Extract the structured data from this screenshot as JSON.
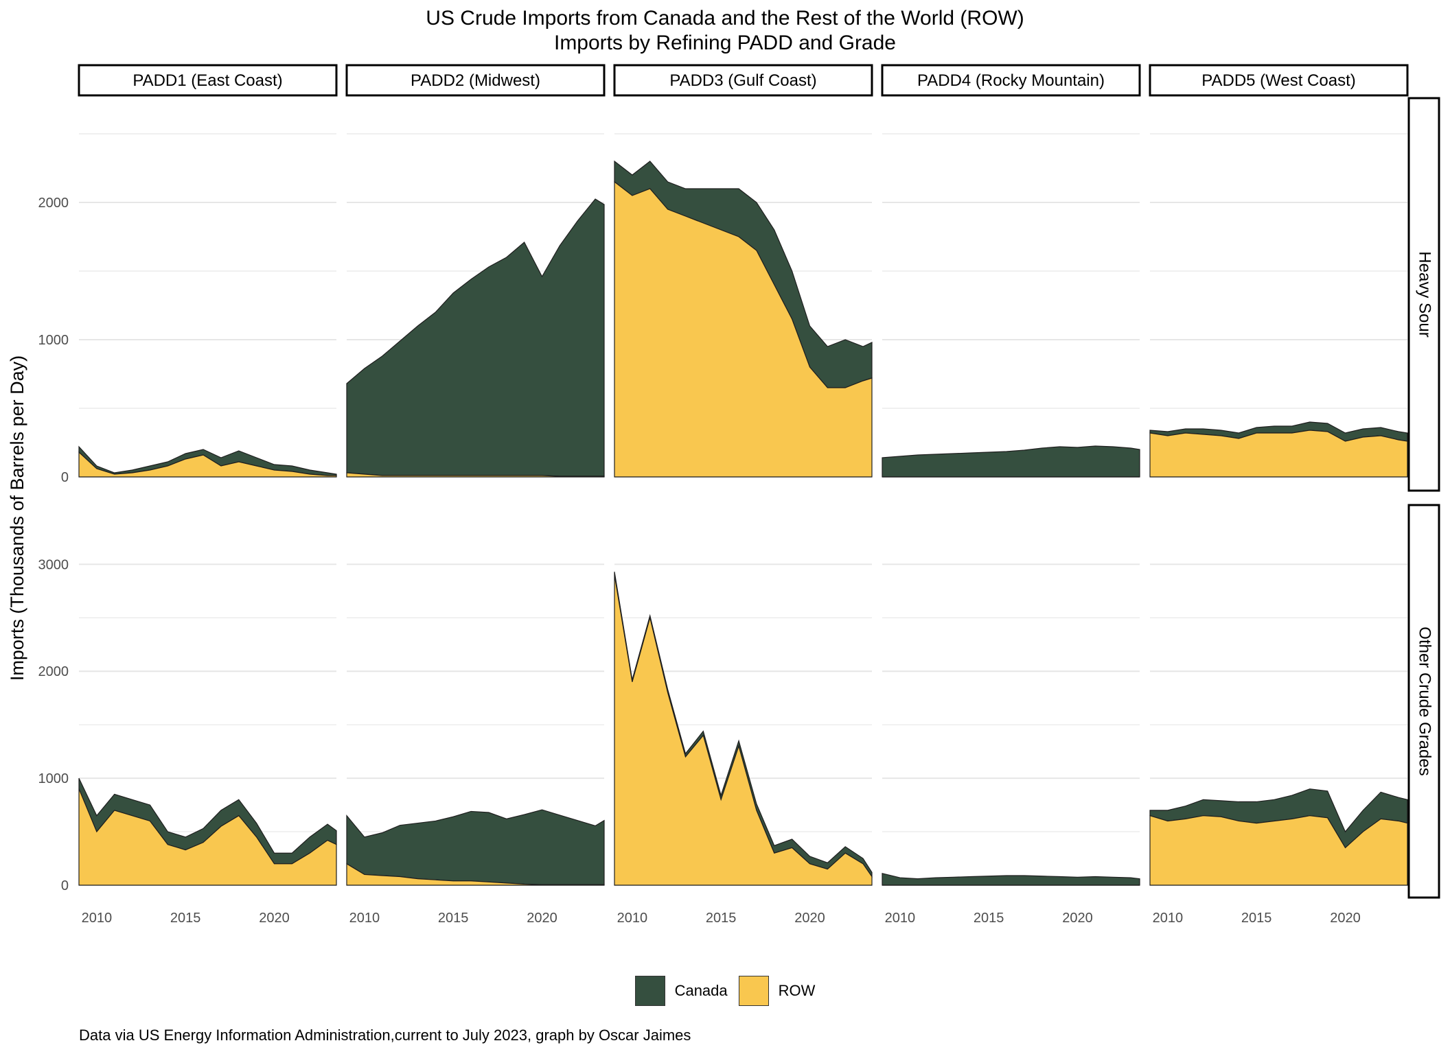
{
  "chart_data": {
    "type": "area",
    "title": "US Crude Imports from Canada and the Rest of the World (ROW)",
    "subtitle": "Imports by Refining PADD and Grade",
    "ylabel": "Imports (Thousands of Barrels per Day)",
    "xlabel": "",
    "caption": "Data via US Energy Information Administration,current to July 2023, graph by Oscar Jaimes",
    "stacking": "stacked",
    "colors": {
      "Canada": "#354f3f",
      "ROW": "#f9c74f",
      "outline": "#1e1e1e",
      "grid": "#e6e6e6"
    },
    "legend": {
      "position": "bottom",
      "entries": [
        "Canada",
        "ROW"
      ]
    },
    "x_ticks": [
      2010,
      2015,
      2020
    ],
    "xlim": [
      2009.0,
      2023.5
    ],
    "columns": [
      "PADD1 (East Coast)",
      "PADD2 (Midwest)",
      "PADD3 (Gulf Coast)",
      "PADD4 (Rocky Mountain)",
      "PADD5 (West Coast)"
    ],
    "rows": [
      {
        "name": "Heavy Sour",
        "ylim": [
          0,
          2650
        ],
        "y_ticks": [
          0,
          1000,
          2000
        ]
      },
      {
        "name": "Other Crude Grades",
        "ylim": [
          0,
          3400
        ],
        "y_ticks": [
          0,
          1000,
          2000,
          3000
        ]
      }
    ],
    "x": [
      2009.0,
      2010.0,
      2011.0,
      2012.0,
      2013.0,
      2014.0,
      2015.0,
      2016.0,
      2017.0,
      2018.0,
      2019.0,
      2020.0,
      2021.0,
      2022.0,
      2023.0,
      2023.5
    ],
    "panels": [
      {
        "row": "Heavy Sour",
        "column": "PADD1 (East Coast)",
        "series": [
          {
            "name": "ROW",
            "values": [
              180,
              60,
              20,
              30,
              50,
              80,
              130,
              160,
              80,
              110,
              80,
              50,
              40,
              20,
              10,
              10
            ]
          },
          {
            "name": "Canada",
            "values": [
              40,
              20,
              10,
              20,
              30,
              30,
              40,
              40,
              60,
              80,
              60,
              40,
              40,
              30,
              20,
              10
            ]
          }
        ]
      },
      {
        "row": "Heavy Sour",
        "column": "PADD2 (Midwest)",
        "series": [
          {
            "name": "ROW",
            "values": [
              30,
              20,
              10,
              10,
              10,
              10,
              10,
              10,
              10,
              10,
              10,
              10,
              5,
              5,
              5,
              5
            ]
          },
          {
            "name": "Canada",
            "values": [
              650,
              770,
              870,
              980,
              1090,
              1190,
              1330,
              1430,
              1520,
              1590,
              1700,
              1450,
              1680,
              1860,
              2020,
              1980
            ]
          }
        ]
      },
      {
        "row": "Heavy Sour",
        "column": "PADD3 (Gulf Coast)",
        "series": [
          {
            "name": "ROW",
            "values": [
              2150,
              2050,
              2100,
              1950,
              1900,
              1850,
              1800,
              1750,
              1650,
              1400,
              1150,
              800,
              650,
              650,
              700,
              720
            ]
          },
          {
            "name": "Canada",
            "values": [
              150,
              150,
              200,
              200,
              200,
              250,
              300,
              350,
              350,
              400,
              350,
              300,
              300,
              350,
              250,
              260
            ]
          }
        ]
      },
      {
        "row": "Heavy Sour",
        "column": "PADD4 (Rocky Mountain)",
        "series": [
          {
            "name": "ROW",
            "values": [
              0,
              0,
              0,
              0,
              0,
              0,
              0,
              0,
              0,
              0,
              0,
              0,
              0,
              0,
              0,
              0
            ]
          },
          {
            "name": "Canada",
            "values": [
              140,
              150,
              160,
              165,
              170,
              175,
              180,
              185,
              195,
              210,
              220,
              215,
              225,
              220,
              210,
              200
            ]
          }
        ]
      },
      {
        "row": "Heavy Sour",
        "column": "PADD5 (West Coast)",
        "series": [
          {
            "name": "ROW",
            "values": [
              320,
              300,
              320,
              310,
              300,
              280,
              320,
              320,
              320,
              340,
              330,
              260,
              290,
              300,
              270,
              260
            ]
          },
          {
            "name": "Canada",
            "values": [
              20,
              30,
              30,
              40,
              40,
              40,
              40,
              50,
              50,
              60,
              60,
              60,
              60,
              60,
              60,
              60
            ]
          }
        ]
      },
      {
        "row": "Other Crude Grades",
        "column": "PADD1 (East Coast)",
        "series": [
          {
            "name": "ROW",
            "values": [
              900,
              500,
              700,
              650,
              600,
              380,
              330,
              400,
              550,
              650,
              450,
              200,
              200,
              300,
              420,
              380
            ]
          },
          {
            "name": "Canada",
            "values": [
              100,
              150,
              150,
              150,
              150,
              120,
              120,
              130,
              150,
              150,
              130,
              100,
              100,
              150,
              150,
              130
            ]
          }
        ]
      },
      {
        "row": "Other Crude Grades",
        "column": "PADD2 (Midwest)",
        "series": [
          {
            "name": "ROW",
            "values": [
              200,
              100,
              90,
              80,
              60,
              50,
              40,
              40,
              30,
              20,
              10,
              5,
              5,
              5,
              5,
              5
            ]
          },
          {
            "name": "Canada",
            "values": [
              450,
              350,
              400,
              480,
              520,
              550,
              600,
              650,
              650,
              600,
              650,
              700,
              650,
              600,
              550,
              600
            ]
          }
        ]
      },
      {
        "row": "Other Crude Grades",
        "column": "PADD3 (Gulf Coast)",
        "series": [
          {
            "name": "ROW",
            "values": [
              2900,
              1900,
              2500,
              1800,
              1200,
              1400,
              800,
              1300,
              700,
              300,
              350,
              200,
              150,
              300,
              200,
              80
            ]
          },
          {
            "name": "Canada",
            "values": [
              30,
              20,
              20,
              30,
              30,
              40,
              40,
              50,
              60,
              70,
              80,
              70,
              60,
              60,
              50,
              40
            ]
          }
        ]
      },
      {
        "row": "Other Crude Grades",
        "column": "PADD4 (Rocky Mountain)",
        "series": [
          {
            "name": "ROW",
            "values": [
              0,
              0,
              0,
              0,
              0,
              0,
              0,
              0,
              0,
              0,
              0,
              0,
              0,
              0,
              0,
              0
            ]
          },
          {
            "name": "Canada",
            "values": [
              110,
              70,
              60,
              70,
              75,
              80,
              85,
              90,
              90,
              85,
              80,
              75,
              80,
              75,
              70,
              60
            ]
          }
        ]
      },
      {
        "row": "Other Crude Grades",
        "column": "PADD5 (West Coast)",
        "series": [
          {
            "name": "ROW",
            "values": [
              650,
              600,
              620,
              650,
              640,
              600,
              580,
              600,
              620,
              650,
              630,
              350,
              500,
              620,
              600,
              580
            ]
          },
          {
            "name": "Canada",
            "values": [
              50,
              100,
              120,
              150,
              150,
              180,
              200,
              200,
              220,
              250,
              250,
              150,
              200,
              250,
              220,
              220
            ]
          }
        ]
      }
    ]
  }
}
